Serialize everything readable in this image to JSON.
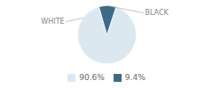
{
  "chart_data": {
    "type": "pie",
    "categories": [
      "WHITE",
      "BLACK"
    ],
    "values": [
      90.6,
      9.4
    ],
    "value_labels": [
      "90.6%",
      "9.4%"
    ],
    "colors": [
      "#dce8f0",
      "#3a6b87"
    ],
    "legend": "bottom"
  }
}
